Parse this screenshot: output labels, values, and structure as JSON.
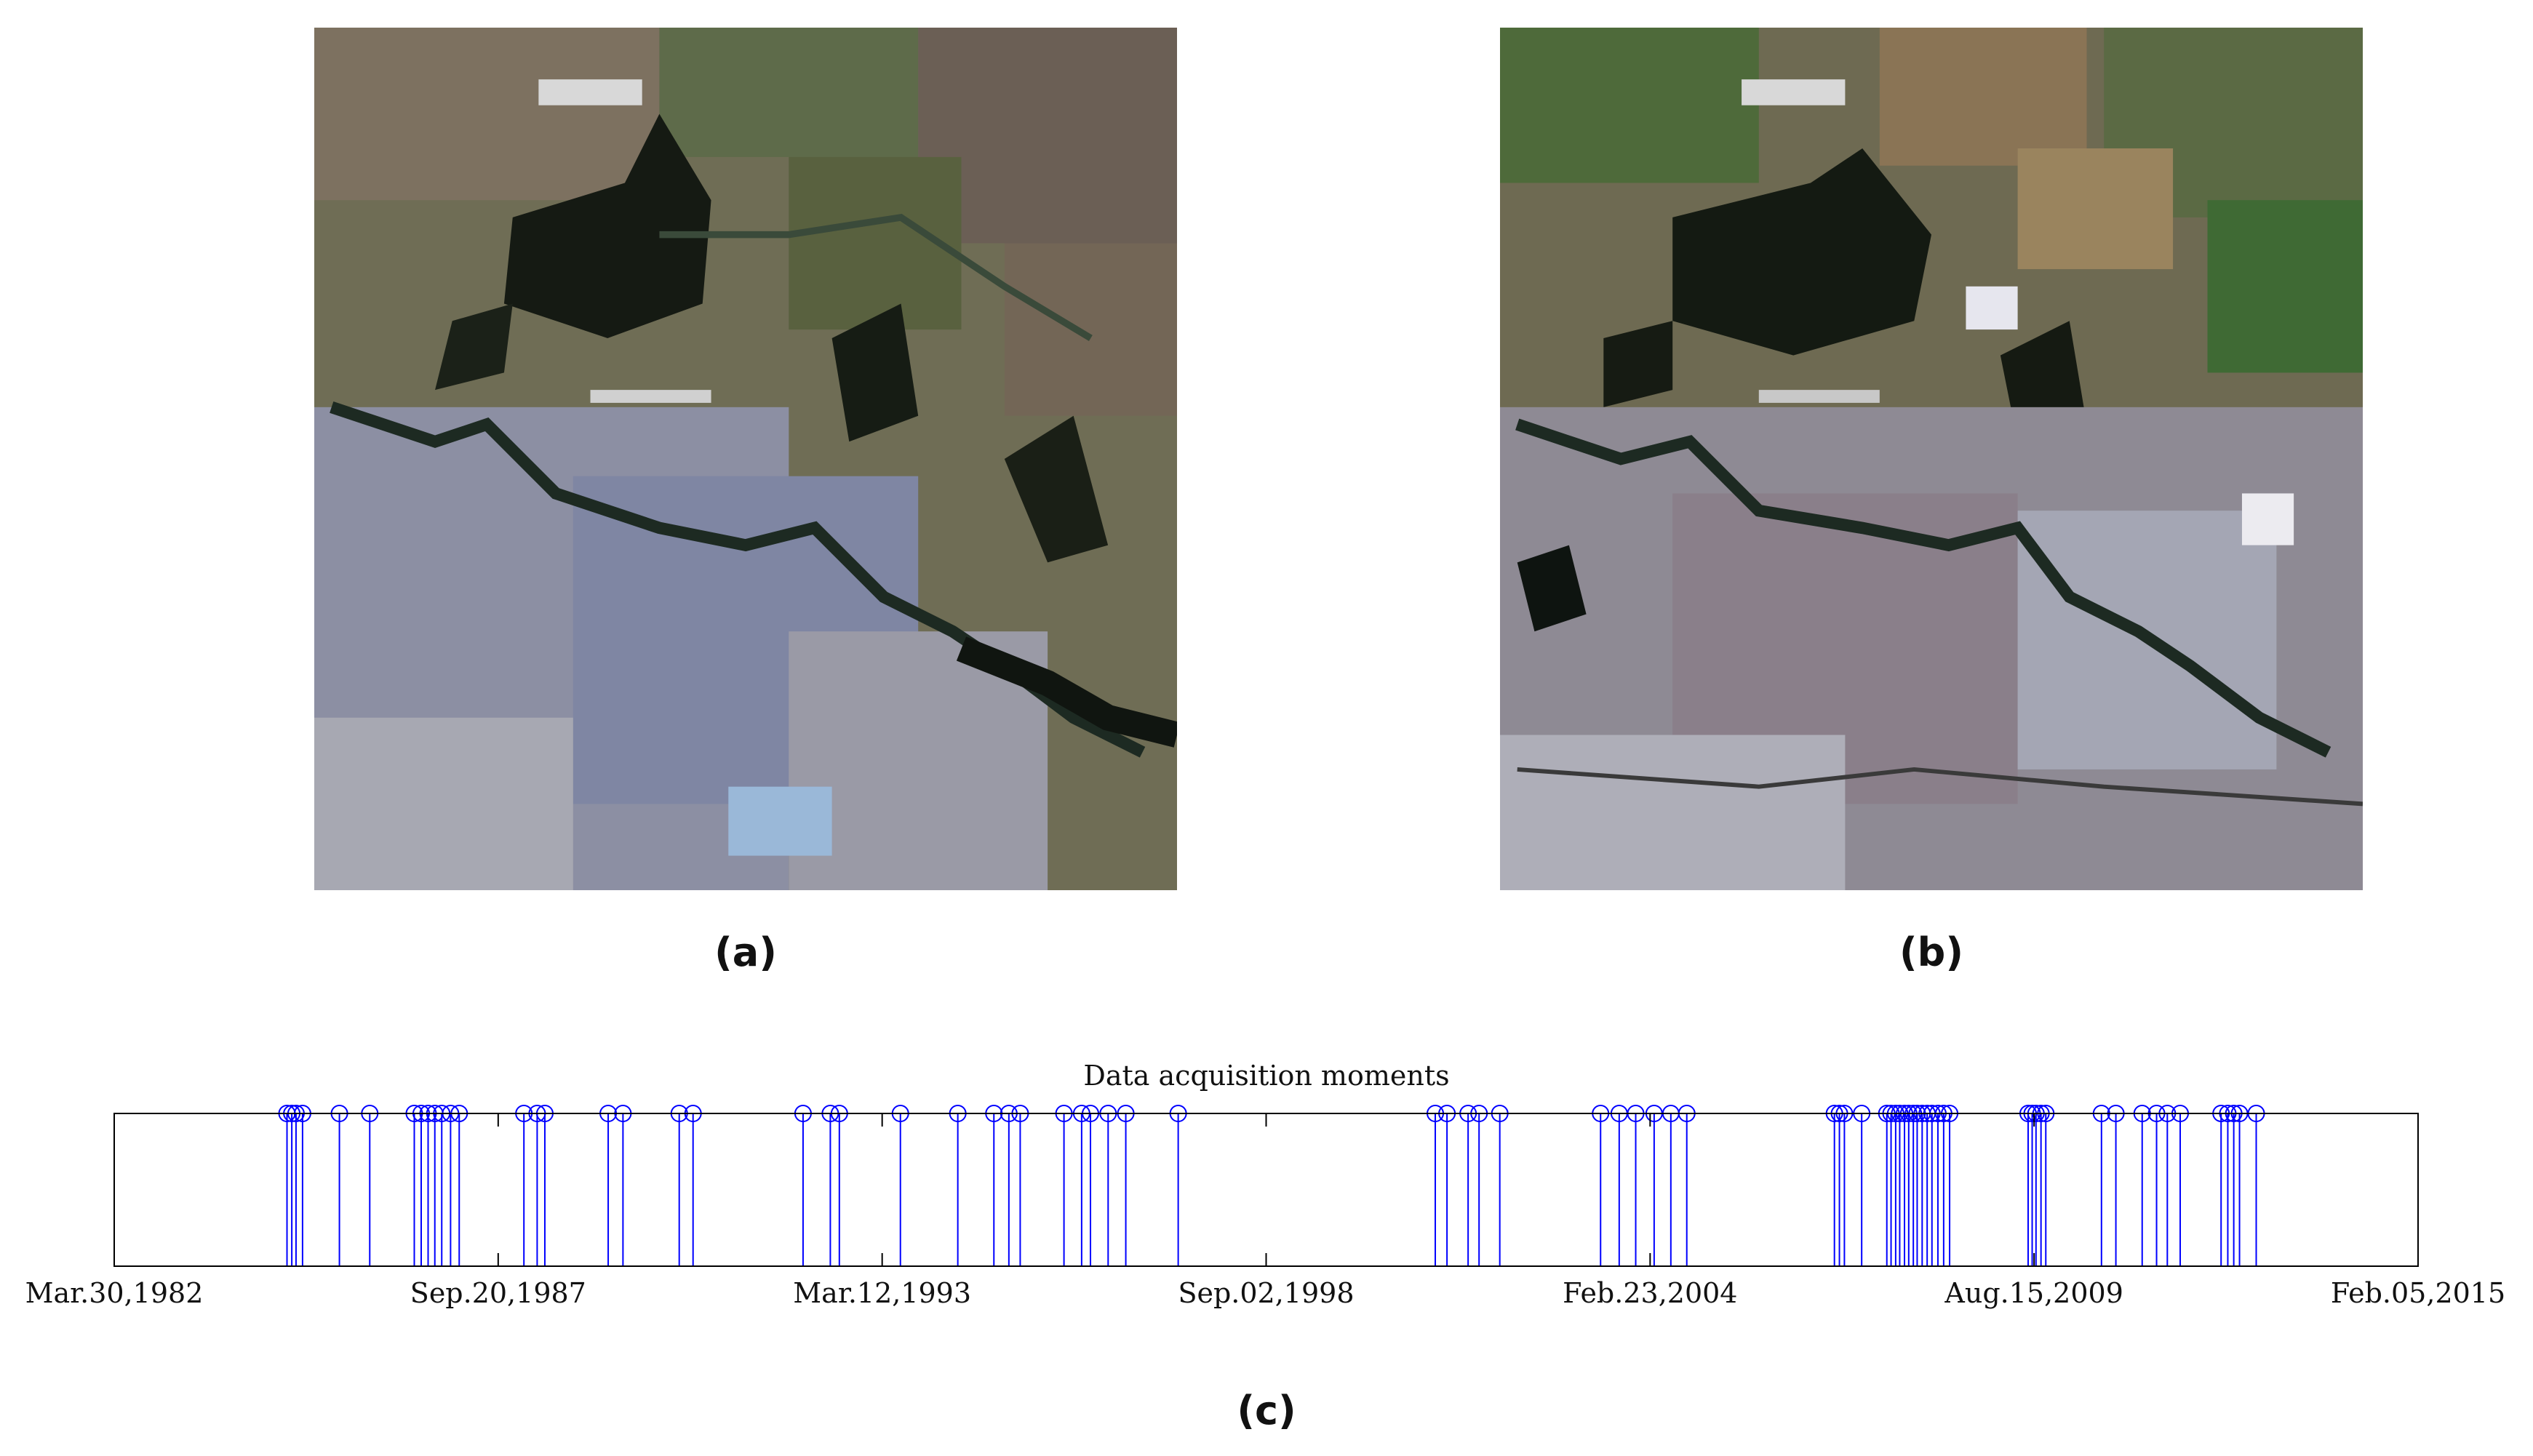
{
  "panels": {
    "a": {
      "label": "(a)"
    },
    "b": {
      "label": "(b)"
    },
    "c": {
      "label": "(c)"
    }
  },
  "colors": {
    "stem": "#0000ff",
    "axis": "#000000"
  },
  "chart_data": {
    "type": "stem",
    "title": "Data acquisition moments",
    "x_axis": {
      "type": "date",
      "range": [
        "1982-03-30",
        "2015-02-05"
      ]
    },
    "x_ticks": [
      {
        "date": "1982-03-30",
        "label": "Mar.30,1982"
      },
      {
        "date": "1987-09-20",
        "label": "Sep.20,1987"
      },
      {
        "date": "1993-03-12",
        "label": "Mar.12,1993"
      },
      {
        "date": "1998-09-02",
        "label": "Sep.02,1998"
      },
      {
        "date": "2004-02-23",
        "label": "Feb.23,2004"
      },
      {
        "date": "2009-08-15",
        "label": "Aug.15,2009"
      },
      {
        "date": "2015-02-05",
        "label": "Feb.05,2015"
      }
    ],
    "ylim": [
      0,
      1
    ],
    "value": 1,
    "dates": [
      "1984-09-15",
      "1984-10-10",
      "1984-11-01",
      "1984-12-05",
      "1985-06-15",
      "1985-11-20",
      "1986-07-10",
      "1986-08-15",
      "1986-09-20",
      "1986-10-25",
      "1986-11-30",
      "1987-01-15",
      "1987-03-01",
      "1988-02-01",
      "1988-04-10",
      "1988-05-20",
      "1989-04-15",
      "1989-07-01",
      "1990-04-20",
      "1990-07-01",
      "1992-01-25",
      "1992-06-15",
      "1992-08-01",
      "1993-06-15",
      "1994-04-10",
      "1994-10-15",
      "1995-01-01",
      "1995-03-01",
      "1995-10-15",
      "1996-01-15",
      "1996-03-01",
      "1996-06-01",
      "1996-09-01",
      "1997-06-01",
      "2001-01-30",
      "2001-04-01",
      "2001-07-20",
      "2001-09-15",
      "2002-01-01",
      "2003-06-10",
      "2003-09-15",
      "2003-12-10",
      "2004-03-15",
      "2004-06-10",
      "2004-09-01",
      "2006-10-10",
      "2006-11-05",
      "2006-12-01",
      "2007-03-01",
      "2007-07-10",
      "2007-08-01",
      "2007-08-25",
      "2007-09-15",
      "2007-10-10",
      "2007-11-01",
      "2007-11-25",
      "2007-12-15",
      "2008-01-10",
      "2008-02-05",
      "2008-03-01",
      "2008-04-01",
      "2008-05-01",
      "2008-06-01",
      "2009-07-15",
      "2009-08-05",
      "2009-08-25",
      "2009-09-20",
      "2009-10-15",
      "2010-08-01",
      "2010-10-15",
      "2011-03-01",
      "2011-05-15",
      "2011-07-10",
      "2011-09-15",
      "2012-04-15",
      "2012-05-20",
      "2012-06-20",
      "2012-07-20",
      "2012-10-15"
    ]
  }
}
